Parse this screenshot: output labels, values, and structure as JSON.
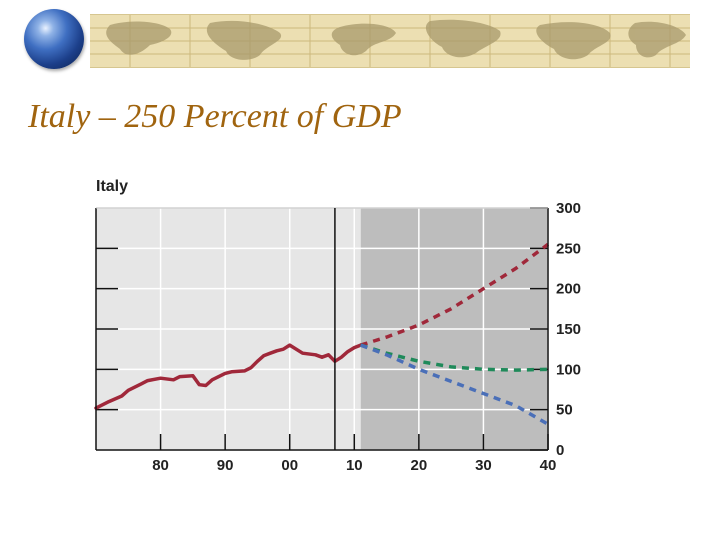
{
  "slide": {
    "title": "Italy – 250 Percent of GDP"
  },
  "icons": {
    "logo": "globe-icon",
    "banner": "world-map-banner"
  },
  "colors": {
    "title": "#a0640f",
    "banner": "#ecdfb2",
    "historical": "#a0283a",
    "projection_high": "#a0283a",
    "projection_mid": "#1f8a5a",
    "projection_low": "#4a6fb8",
    "history_bg": "#e6e6e6",
    "projection_bg": "#bdbdbd"
  },
  "chart_data": {
    "type": "line",
    "title": "Italy",
    "xlim": [
      1970,
      2040
    ],
    "ylim": [
      0,
      300
    ],
    "x_ticks": [
      {
        "value": 1980,
        "label": "80"
      },
      {
        "value": 1990,
        "label": "90"
      },
      {
        "value": 2000,
        "label": "00"
      },
      {
        "value": 2010,
        "label": "10"
      },
      {
        "value": 2020,
        "label": "20"
      },
      {
        "value": 2030,
        "label": "30"
      },
      {
        "value": 2040,
        "label": "40"
      }
    ],
    "y_ticks": [
      {
        "value": 0,
        "label": "0"
      },
      {
        "value": 50,
        "label": "50"
      },
      {
        "value": 100,
        "label": "100"
      },
      {
        "value": 150,
        "label": "150"
      },
      {
        "value": 200,
        "label": "200"
      },
      {
        "value": 250,
        "label": "250"
      },
      {
        "value": 300,
        "label": "300"
      }
    ],
    "y_axis_side": "right",
    "grid": true,
    "current_year_marker": 2007,
    "projection_start": 2011,
    "series": [
      {
        "style": "solid",
        "x": [
          1970,
          1972,
          1974,
          1975,
          1977,
          1978,
          1980,
          1982,
          1983,
          1985,
          1986,
          1987,
          1988,
          1990,
          1991,
          1993,
          1994,
          1995,
          1996,
          1997,
          1998,
          1999,
          2000,
          2002,
          2004,
          2005,
          2006,
          2007,
          2008,
          2009,
          2010,
          2011
        ],
        "values": [
          52,
          60,
          67,
          74,
          82,
          86,
          89,
          87,
          91,
          92,
          81,
          80,
          87,
          95,
          97,
          98,
          102,
          110,
          117,
          120,
          123,
          125,
          130,
          120,
          118,
          115,
          118,
          110,
          115,
          122,
          127,
          130
        ]
      },
      {
        "style": "dashed",
        "x": [
          2011,
          2015,
          2020,
          2025,
          2030,
          2035,
          2040
        ],
        "values": [
          130,
          140,
          155,
          175,
          200,
          225,
          255
        ]
      },
      {
        "style": "dashed",
        "x": [
          2011,
          2015,
          2020,
          2025,
          2030,
          2035,
          2040
        ],
        "values": [
          130,
          120,
          110,
          103,
          100,
          99,
          100
        ]
      },
      {
        "style": "dashed",
        "x": [
          2011,
          2015,
          2020,
          2025,
          2030,
          2035,
          2040
        ],
        "values": [
          130,
          118,
          100,
          85,
          70,
          55,
          32
        ]
      }
    ]
  }
}
